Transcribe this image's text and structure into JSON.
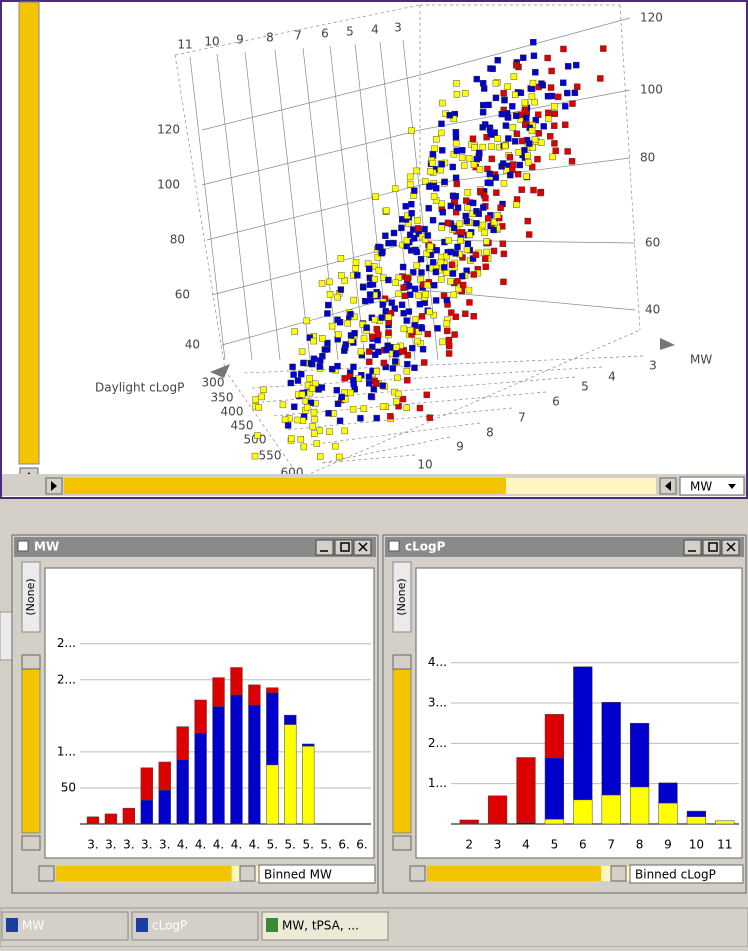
{
  "plot3d": {
    "left_ticks": [
      120,
      100,
      80,
      60,
      40
    ],
    "right_ticks": [
      120,
      100,
      80,
      60,
      40
    ],
    "top_ticks": [
      11,
      10,
      9,
      8,
      7,
      6,
      5,
      4,
      3
    ],
    "front_ticks": [
      300,
      350,
      400,
      450,
      500,
      550,
      600
    ],
    "bottom_ticks": [
      3,
      4,
      5,
      6,
      7,
      8,
      9,
      10
    ],
    "x_label": "MW",
    "y_label": "Daylight cLogP",
    "axis_dropdown": "MW"
  },
  "windows": [
    {
      "title": "MW",
      "tab": "(None)",
      "binning": "Binned MW",
      "chart_data": {
        "type": "bar",
        "stacked": true,
        "categories": [
          "3.",
          "3.",
          "3.",
          "3.",
          "3.",
          "4.",
          "4.",
          "4.",
          "4.",
          "4.",
          "5.",
          "5.",
          "5.",
          "5.",
          "6.",
          "6."
        ],
        "series": [
          {
            "color": "#ffff00",
            "values": [
              0,
              0,
              0,
              0,
              0,
              0,
              0,
              0,
              0,
              0,
              82,
              138,
              108,
              0,
              0,
              0
            ]
          },
          {
            "color": "#0000cc",
            "values": [
              0,
              0,
              0,
              33,
              47,
              89,
              126,
              163,
              179,
              165,
              100,
              13,
              3,
              0,
              0,
              0
            ]
          },
          {
            "color": "#dd0000",
            "values": [
              10,
              14,
              22,
              45,
              39,
              46,
              46,
              40,
              38,
              28,
              7,
              0,
              0,
              0,
              0,
              0
            ]
          }
        ],
        "ylim": [
          0,
          355
        ],
        "yticks": [
          50,
          {
            "value": 100,
            "label": "1..."
          },
          {
            "value": 200,
            "label": "2..."
          },
          {
            "value": 250,
            "label": "2..."
          }
        ],
        "grid": true
      }
    },
    {
      "title": "cLogP",
      "tab": "(None)",
      "binning": "Binned cLogP",
      "chart_data": {
        "type": "bar",
        "stacked": true,
        "categories": [
          "2",
          "3",
          "4",
          "5",
          "6",
          "7",
          "8",
          "9",
          "10",
          "11"
        ],
        "series": [
          {
            "color": "#ffff00",
            "values": [
              0,
              0,
              0,
              12,
              60,
              72,
              92,
              52,
              18,
              8
            ]
          },
          {
            "color": "#0000cc",
            "values": [
              0,
              0,
              3,
              152,
              330,
              230,
              158,
              50,
              14,
              0
            ]
          },
          {
            "color": "#dd0000",
            "values": [
              10,
              70,
              162,
              108,
              0,
              0,
              0,
              0,
              0,
              0
            ]
          }
        ],
        "ylim": [
          0,
          635
        ],
        "yticks": [
          {
            "value": 100,
            "label": "1..."
          },
          {
            "value": 200,
            "label": "2..."
          },
          {
            "value": 300,
            "label": "3..."
          },
          {
            "value": 400,
            "label": "4..."
          }
        ],
        "grid": true
      }
    }
  ],
  "tabs": [
    "MW",
    "cLogP",
    "MW, tPSA, ..."
  ]
}
